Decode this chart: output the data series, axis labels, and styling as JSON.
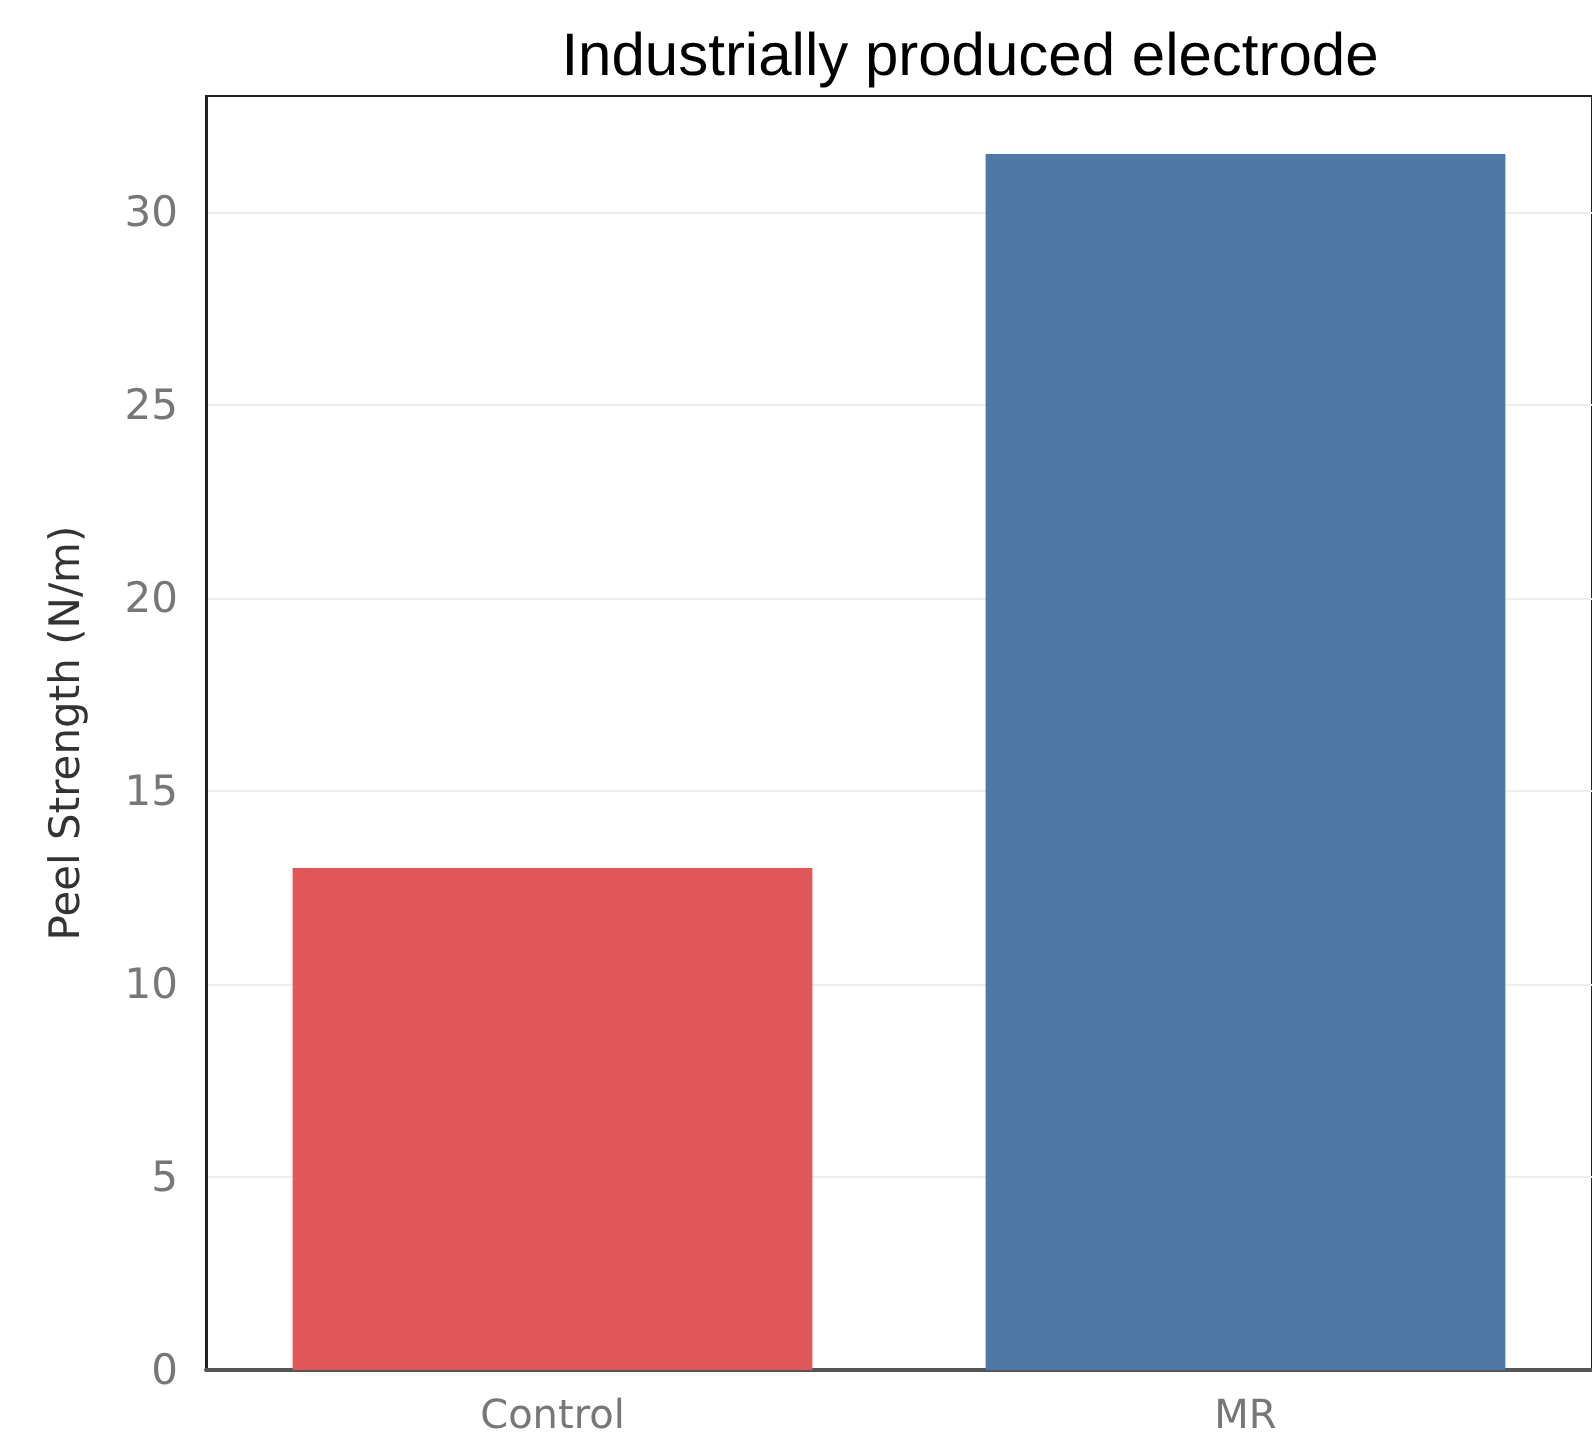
{
  "chart_data": {
    "type": "bar",
    "title": "Industrially produced electrode",
    "ylabel": "Peel Strength (N/m)",
    "categories": [
      "Control",
      "MR"
    ],
    "values": [
      13,
      31.5
    ],
    "colors": [
      "#e15759",
      "#4e79a7"
    ],
    "ylim": [
      0,
      33
    ],
    "yticks": [
      0,
      5,
      10,
      15,
      20,
      25,
      30
    ],
    "grid": "y"
  }
}
